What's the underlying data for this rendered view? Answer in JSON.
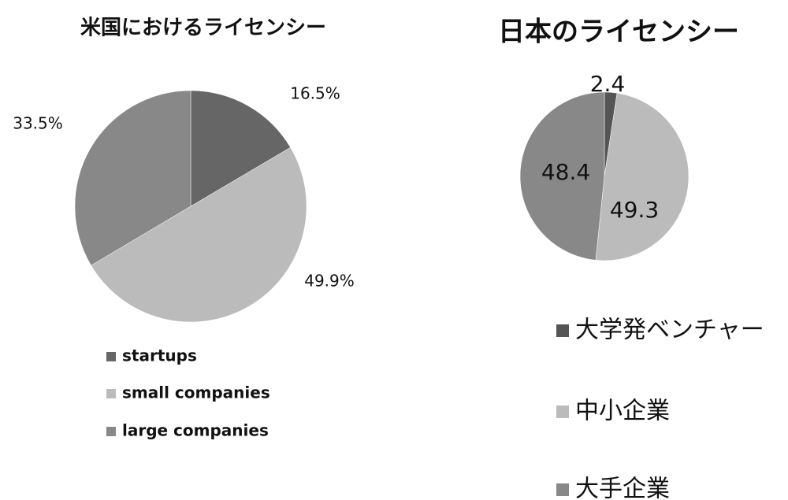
{
  "chart_data": [
    {
      "type": "pie",
      "title": "米国におけるライセンシー",
      "categories": [
        "startups",
        "small companies",
        "large companies"
      ],
      "values": [
        16.5,
        49.9,
        33.5
      ],
      "value_labels": [
        "16.5%",
        "49.9%",
        "33.5%"
      ],
      "colors": [
        "#666666",
        "#bbbbbb",
        "#888888"
      ]
    },
    {
      "type": "pie",
      "title": "日本のライセンシー",
      "categories": [
        "大学発ベンチャー",
        "中小企業",
        "大手企業"
      ],
      "values": [
        2.4,
        49.3,
        48.4
      ],
      "colors": [
        "#555555",
        "#bbbbbb",
        "#888888"
      ]
    }
  ]
}
